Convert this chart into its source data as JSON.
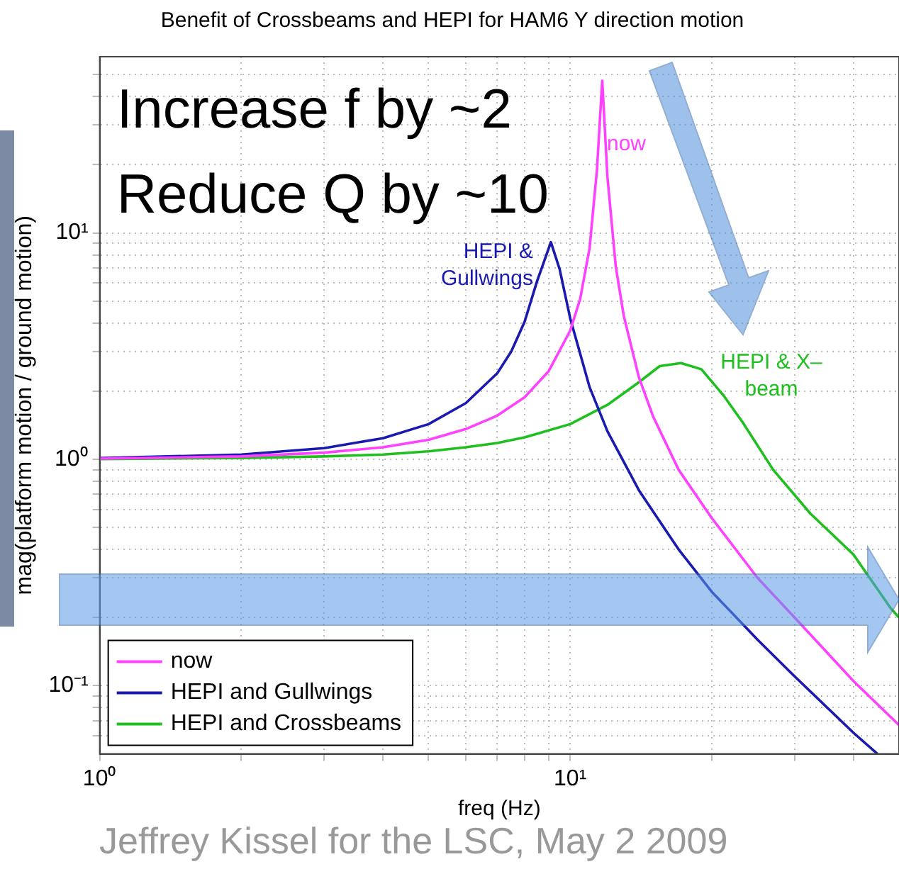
{
  "chart_data": {
    "type": "line",
    "title": "Benefit of Crossbeams and HEPI for HAM6 Y direction motion",
    "xlabel": "freq (Hz)",
    "ylabel": "mag(platform motion / ground motion)",
    "log": "xy",
    "grid": true,
    "legend": "bottom left",
    "marker": "none",
    "line_style": "solid",
    "xlim": [
      1,
      50
    ],
    "ylim": [
      0.05,
      60
    ],
    "xticks": [
      {
        "value": 1,
        "label": "10⁰"
      },
      {
        "value": 2,
        "label": null
      },
      {
        "value": 3,
        "label": null
      },
      {
        "value": 4,
        "label": null
      },
      {
        "value": 5,
        "label": null
      },
      {
        "value": 6,
        "label": null
      },
      {
        "value": 7,
        "label": null
      },
      {
        "value": 8,
        "label": null
      },
      {
        "value": 9,
        "label": null
      },
      {
        "value": 10,
        "label": "10¹"
      },
      {
        "value": 20,
        "label": null
      },
      {
        "value": 30,
        "label": null
      },
      {
        "value": 40,
        "label": null
      }
    ],
    "yticks": [
      {
        "value": 0.06,
        "label": null
      },
      {
        "value": 0.07,
        "label": null
      },
      {
        "value": 0.08,
        "label": null
      },
      {
        "value": 0.09,
        "label": null
      },
      {
        "value": 0.1,
        "label": "10⁻¹"
      },
      {
        "value": 0.2,
        "label": null
      },
      {
        "value": 0.3,
        "label": null
      },
      {
        "value": 0.4,
        "label": null
      },
      {
        "value": 0.5,
        "label": null
      },
      {
        "value": 0.6,
        "label": null
      },
      {
        "value": 0.7,
        "label": null
      },
      {
        "value": 0.8,
        "label": null
      },
      {
        "value": 0.9,
        "label": null
      },
      {
        "value": 1,
        "label": "10⁰"
      },
      {
        "value": 2,
        "label": null
      },
      {
        "value": 3,
        "label": null
      },
      {
        "value": 4,
        "label": null
      },
      {
        "value": 5,
        "label": null
      },
      {
        "value": 6,
        "label": null
      },
      {
        "value": 7,
        "label": null
      },
      {
        "value": 8,
        "label": null
      },
      {
        "value": 9,
        "label": null
      },
      {
        "value": 10,
        "label": "10¹"
      },
      {
        "value": 20,
        "label": null
      },
      {
        "value": 30,
        "label": null
      },
      {
        "value": 40,
        "label": null
      },
      {
        "value": 50,
        "label": null
      }
    ],
    "series": [
      {
        "name": "now",
        "color": "#ff40ff",
        "x": [
          1,
          2,
          3,
          4,
          5,
          6,
          7,
          8,
          9,
          10,
          10.5,
          11,
          11.4,
          11.7,
          12,
          12.5,
          13,
          14,
          15,
          17,
          20,
          25,
          30,
          40,
          50
        ],
        "values": [
          1.007,
          1.03,
          1.07,
          1.13,
          1.22,
          1.36,
          1.56,
          1.88,
          2.45,
          3.7,
          5.1,
          8.6,
          19,
          47,
          17.7,
          7.1,
          4.3,
          2.3,
          1.55,
          0.9,
          0.55,
          0.3,
          0.2,
          0.105,
          0.067
        ]
      },
      {
        "name": "HEPI and Gullwings",
        "color": "#1a1ab0",
        "x": [
          1,
          2,
          3,
          4,
          5,
          6,
          7,
          7.5,
          8,
          8.5,
          9.1,
          9.5,
          10,
          11,
          12,
          14,
          17,
          20,
          25,
          30,
          40,
          45
        ],
        "values": [
          1.012,
          1.05,
          1.12,
          1.24,
          1.43,
          1.77,
          2.4,
          3,
          4.05,
          6.1,
          9.1,
          6.9,
          4.2,
          2.08,
          1.33,
          0.73,
          0.4,
          0.26,
          0.16,
          0.11,
          0.062,
          0.05
        ]
      },
      {
        "name": "HEPI and Crossbeams",
        "color": "#1fbf1f",
        "x": [
          1,
          2,
          3,
          4,
          5,
          6,
          7,
          8,
          10,
          12,
          14,
          15.5,
          17.2,
          19,
          21.2,
          23.3,
          27,
          32.4,
          40,
          48,
          50
        ],
        "values": [
          1.003,
          1.014,
          1.03,
          1.05,
          1.085,
          1.13,
          1.18,
          1.25,
          1.43,
          1.74,
          2.19,
          2.58,
          2.66,
          2.5,
          1.91,
          1.45,
          0.9,
          0.576,
          0.38,
          0.22,
          0.2
        ]
      }
    ],
    "annotations": [
      "Increase f by ~2",
      "Reduce Q by ~10",
      "now",
      "HEPI & Gullwings",
      "HEPI & X–beam",
      "Jeffrey Kissel for the LSC, May 2 2009"
    ]
  }
}
